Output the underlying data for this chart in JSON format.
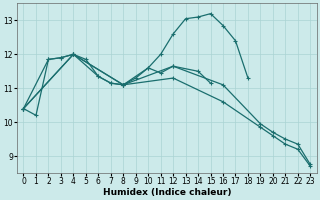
{
  "xlabel": "Humidex (Indice chaleur)",
  "background_color": "#cceaea",
  "grid_color": "#aad4d4",
  "line_color": "#1a6e6e",
  "xlim": [
    -0.5,
    23.5
  ],
  "ylim": [
    8.5,
    13.5
  ],
  "xticks": [
    0,
    1,
    2,
    3,
    4,
    5,
    6,
    7,
    8,
    9,
    10,
    11,
    12,
    13,
    14,
    15,
    16,
    17,
    18,
    19,
    20,
    21,
    22,
    23
  ],
  "yticks": [
    9,
    10,
    11,
    12,
    13
  ],
  "curve1_x": [
    0,
    1,
    2,
    3,
    4,
    5,
    6,
    7,
    8,
    9,
    10,
    11,
    12,
    13,
    14,
    15,
    16,
    17,
    18
  ],
  "curve1_y": [
    10.4,
    10.2,
    11.85,
    11.9,
    12.0,
    11.85,
    11.35,
    11.15,
    11.1,
    11.3,
    11.6,
    12.0,
    12.6,
    13.05,
    13.1,
    13.2,
    12.85,
    12.4,
    11.3
  ],
  "curve2_x": [
    0,
    2,
    3,
    4,
    6,
    7,
    8,
    10,
    11,
    12,
    14,
    15
  ],
  "curve2_y": [
    10.4,
    11.85,
    11.9,
    12.0,
    11.35,
    11.15,
    11.1,
    11.6,
    11.45,
    11.65,
    11.5,
    11.15
  ],
  "line1_x": [
    0,
    4,
    8,
    12,
    16,
    19,
    20,
    21,
    22,
    23
  ],
  "line1_y": [
    10.4,
    12.0,
    11.1,
    11.3,
    10.6,
    9.85,
    9.6,
    9.35,
    9.2,
    8.7
  ],
  "line2_x": [
    0,
    4,
    8,
    12,
    16,
    19,
    20,
    21,
    22,
    23
  ],
  "line2_y": [
    10.4,
    12.0,
    11.1,
    11.65,
    11.1,
    9.95,
    9.7,
    9.5,
    9.35,
    8.75
  ]
}
